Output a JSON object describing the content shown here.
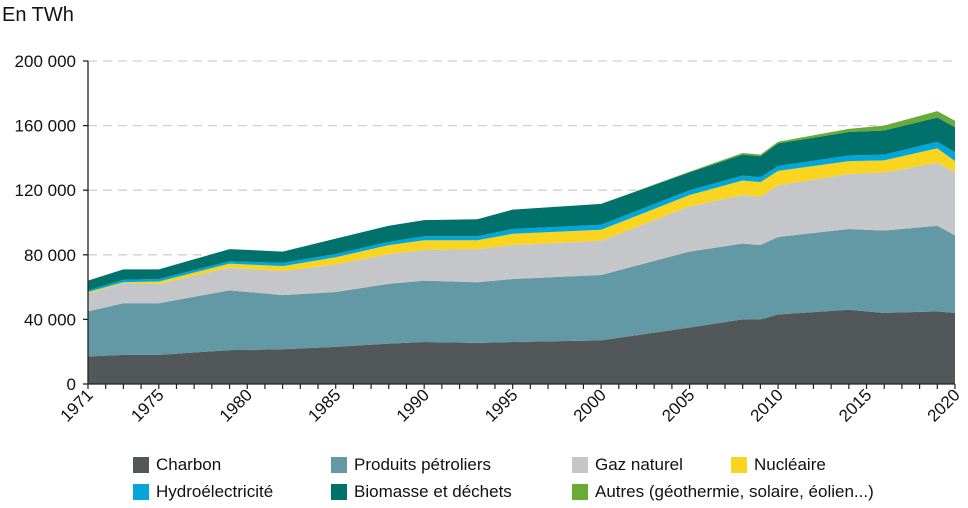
{
  "chart_data": {
    "type": "area",
    "stacked": true,
    "ylabel": "En TWh",
    "ylim": [
      0,
      200000
    ],
    "yticks": [
      0,
      40000,
      80000,
      120000,
      160000,
      200000
    ],
    "ytick_labels": [
      "0",
      "40 000",
      "80 000",
      "120 000",
      "160 000",
      "200 000"
    ],
    "xlim": [
      1971,
      2020
    ],
    "xtick_labels": [
      "1971",
      "1975",
      "1980",
      "1985",
      "1990",
      "1995",
      "2000",
      "2005",
      "2010",
      "2015",
      "2020"
    ],
    "grid": "horizontal dashed",
    "legend_position": "bottom",
    "x": [
      1971,
      1973,
      1975,
      1979,
      1982,
      1985,
      1988,
      1990,
      1993,
      1995,
      2000,
      2005,
      2008,
      2009,
      2010,
      2014,
      2016,
      2019,
      2020
    ],
    "series": [
      {
        "name": "Charbon",
        "color": "#525759",
        "values": [
          17000,
          18000,
          18000,
          21000,
          21500,
          23000,
          25000,
          26000,
          25500,
          26000,
          27000,
          35000,
          40000,
          40000,
          43000,
          46000,
          44000,
          45000,
          44000
        ]
      },
      {
        "name": "Produits pétroliers",
        "color": "#6398a5",
        "values": [
          28000,
          32000,
          32000,
          37000,
          33500,
          34000,
          37000,
          38000,
          37500,
          39000,
          40500,
          47000,
          47000,
          46000,
          48000,
          50000,
          51000,
          53000,
          48000
        ]
      },
      {
        "name": "Gaz naturel",
        "color": "#c5c6c9",
        "values": [
          11000,
          12500,
          12000,
          14000,
          15000,
          17000,
          18500,
          19000,
          20500,
          21000,
          21200,
          28000,
          30000,
          30000,
          32000,
          34000,
          36000,
          39000,
          39000
        ]
      },
      {
        "name": "Nucléaire",
        "color": "#f9d51f",
        "values": [
          1000,
          500,
          1500,
          2500,
          3000,
          4500,
          5500,
          6000,
          5500,
          7000,
          6800,
          7000,
          9000,
          9000,
          9000,
          8000,
          7500,
          9000,
          7000
        ]
      },
      {
        "name": "Hydroélectricité",
        "color": "#00a6dc",
        "values": [
          1000,
          1500,
          1500,
          1500,
          2000,
          2000,
          2000,
          2500,
          2500,
          3000,
          3100,
          3000,
          3000,
          3000,
          3000,
          3500,
          3500,
          4000,
          5500
        ]
      },
      {
        "name": "Biomasse et déchets",
        "color": "#00726b",
        "values": [
          6000,
          6500,
          6000,
          7500,
          7000,
          9500,
          10000,
          10000,
          10500,
          12000,
          12900,
          11000,
          13000,
          13000,
          14000,
          14500,
          15000,
          15000,
          15500
        ]
      },
      {
        "name": "Autres (géothermie, solaire, éolien...)",
        "color": "#6aaa36",
        "values": [
          0,
          0,
          0,
          0,
          0,
          0,
          0,
          0,
          0,
          0,
          0,
          500,
          1000,
          1000,
          1000,
          2000,
          3000,
          4000,
          4000
        ]
      }
    ]
  }
}
